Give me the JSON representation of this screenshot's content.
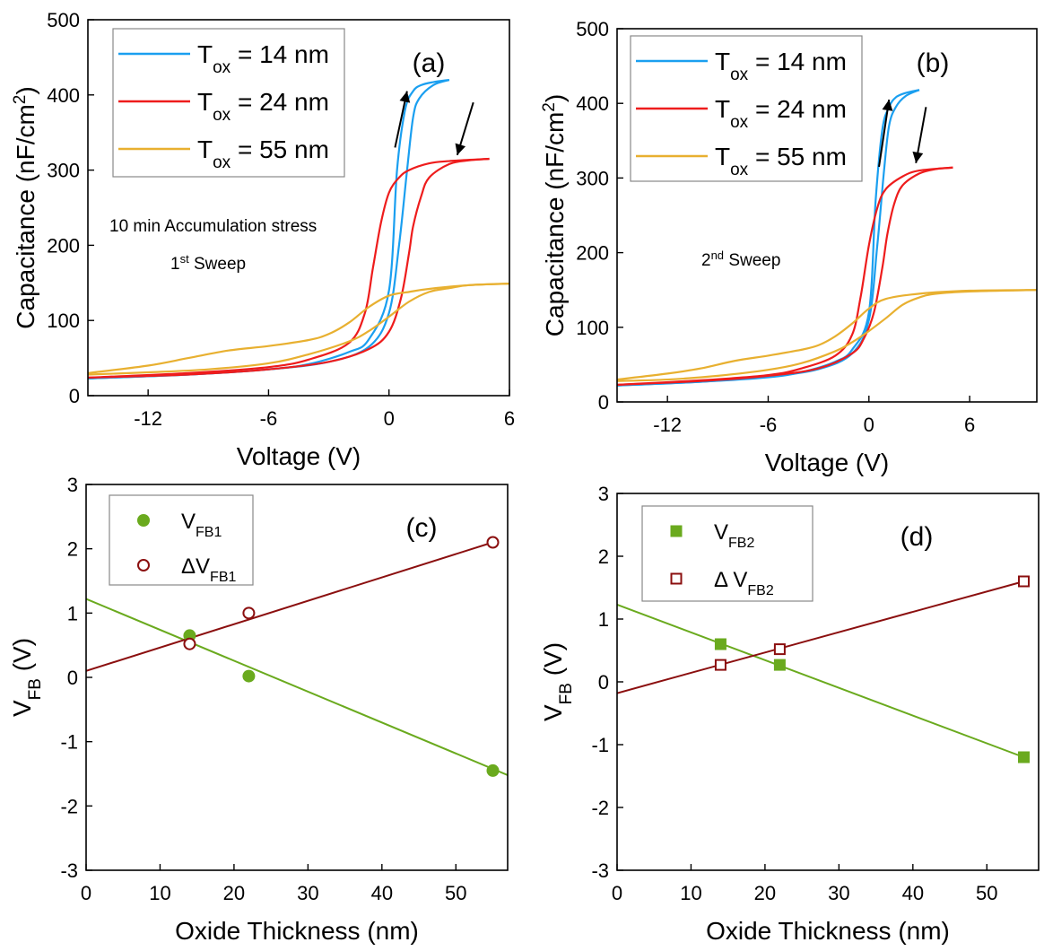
{
  "colors": {
    "t14": "#1a9ff0",
    "t24": "#ee1c1c",
    "t55": "#e8b030",
    "green": "#6aaa1e",
    "darkred": "#8b0f0f"
  },
  "chart_data": [
    {
      "id": "a",
      "type": "line",
      "panel_label": "(a)",
      "xlabel": "Voltage (V)",
      "ylabel_main": "Capacitance (nF/cm",
      "ylabel_sup": "2",
      "ylabel_end": ")",
      "xlim": [
        -15,
        6
      ],
      "ylim": [
        0,
        500
      ],
      "xticks": [
        -12,
        -6,
        0,
        6
      ],
      "yticks": [
        0,
        100,
        200,
        300,
        400,
        500
      ],
      "annotation_lines": [
        {
          "text": "10 min Accumulation stress"
        },
        {
          "prefix": "1",
          "sup": "st",
          "suffix": " Sweep"
        }
      ],
      "legend": [
        {
          "main": "T",
          "sub": "ox",
          "rest": " = 14 nm",
          "color_key": "t14"
        },
        {
          "main": "T",
          "sub": "ox",
          "rest": " = 24 nm",
          "color_key": "t24"
        },
        {
          "main": "T",
          "sub": "ox",
          "rest": " = 55 nm",
          "color_key": "t55"
        }
      ],
      "series": [
        {
          "name": "Tox = 14 nm, forward",
          "color_key": "t14",
          "x": [
            -15,
            -10,
            -6,
            -4,
            -2,
            -1,
            0,
            0.4,
            0.8,
            1.2,
            1.6,
            2.2,
            3
          ],
          "y": [
            23,
            28,
            35,
            42,
            58,
            75,
            140,
            300,
            380,
            405,
            413,
            417,
            420
          ]
        },
        {
          "name": "Tox = 14 nm, reverse",
          "color_key": "t14",
          "x": [
            3,
            2.2,
            1.5,
            1.2,
            0.9,
            0.5,
            0,
            -1,
            -3,
            -6,
            -10,
            -15
          ],
          "y": [
            420,
            413,
            395,
            370,
            300,
            200,
            110,
            65,
            45,
            35,
            28,
            23
          ]
        },
        {
          "name": "Tox = 24 nm, forward",
          "color_key": "t24",
          "x": [
            -15,
            -10,
            -6,
            -4,
            -2,
            -1.2,
            -0.8,
            -0.4,
            0,
            0.5,
            1,
            2,
            3,
            5
          ],
          "y": [
            24,
            30,
            38,
            48,
            70,
            110,
            170,
            230,
            270,
            290,
            300,
            309,
            312,
            315
          ]
        },
        {
          "name": "Tox = 24 nm, reverse",
          "color_key": "t24",
          "x": [
            5,
            4,
            3,
            2,
            1.6,
            1.2,
            1,
            0.6,
            0,
            -1,
            -3,
            -6,
            -10,
            -15
          ],
          "y": [
            315,
            313,
            308,
            290,
            265,
            225,
            190,
            130,
            85,
            62,
            45,
            35,
            28,
            24
          ]
        },
        {
          "name": "Tox = 55 nm, forward",
          "color_key": "t55",
          "x": [
            -15,
            -12,
            -10,
            -8,
            -6,
            -4,
            -3,
            -2,
            -1,
            0,
            1,
            2,
            4,
            6
          ],
          "y": [
            30,
            40,
            50,
            60,
            66,
            74,
            82,
            97,
            118,
            133,
            138,
            142,
            147,
            149
          ]
        },
        {
          "name": "Tox = 55 nm, reverse",
          "color_key": "t55",
          "x": [
            6,
            4,
            3,
            2,
            1,
            0,
            -1,
            -2,
            -4,
            -6,
            -9,
            -12,
            -15
          ],
          "y": [
            149,
            147,
            143,
            138,
            125,
            105,
            86,
            72,
            55,
            43,
            35,
            31,
            28
          ]
        }
      ],
      "arrows": [
        {
          "from": [
            0.3,
            330
          ],
          "to": [
            0.9,
            405
          ]
        },
        {
          "from": [
            4.2,
            390
          ],
          "to": [
            3.4,
            320
          ]
        }
      ]
    },
    {
      "id": "b",
      "type": "line",
      "panel_label": "(b)",
      "xlabel": "Voltage (V)",
      "ylabel_main": "Capacitance (nF/cm",
      "ylabel_sup": "2",
      "ylabel_end": ")",
      "xlim": [
        -15,
        10
      ],
      "ylim": [
        0,
        500
      ],
      "xticks": [
        -12,
        -6,
        0,
        6
      ],
      "yticks": [
        0,
        100,
        200,
        300,
        400,
        500
      ],
      "annotation_lines": [
        {
          "prefix": "2",
          "sup": "nd",
          "suffix": " Sweep"
        }
      ],
      "legend": [
        {
          "main": "T",
          "sub": "ox",
          "rest": " = 14 nm",
          "color_key": "t14"
        },
        {
          "main": "T",
          "sub": "ox",
          "rest": " = 24 nm",
          "color_key": "t24"
        },
        {
          "main": "T",
          "sub": "ox",
          "rest": " = 55 nm",
          "color_key": "t55"
        }
      ],
      "series": [
        {
          "name": "Tox = 14 nm, forward",
          "color_key": "t14",
          "x": [
            -15,
            -10,
            -6,
            -4,
            -2,
            -1,
            0,
            0.4,
            0.8,
            1.2,
            1.6,
            2.2,
            3
          ],
          "y": [
            22,
            27,
            33,
            40,
            54,
            70,
            120,
            270,
            365,
            395,
            408,
            414,
            418
          ]
        },
        {
          "name": "Tox = 14 nm, reverse",
          "color_key": "t14",
          "x": [
            3,
            2.2,
            1.6,
            1.2,
            0.9,
            0.5,
            0,
            -1,
            -3,
            -6,
            -10,
            -15
          ],
          "y": [
            418,
            410,
            395,
            370,
            310,
            210,
            110,
            65,
            44,
            34,
            27,
            22
          ]
        },
        {
          "name": "Tox = 24 nm, forward",
          "color_key": "t24",
          "x": [
            -15,
            -10,
            -6,
            -4,
            -2,
            -1,
            -0.5,
            0,
            0.5,
            1,
            2,
            3,
            5
          ],
          "y": [
            23,
            29,
            36,
            45,
            62,
            90,
            140,
            210,
            260,
            285,
            302,
            310,
            314
          ]
        },
        {
          "name": "Tox = 24 nm, reverse",
          "color_key": "t24",
          "x": [
            5,
            4,
            3,
            2,
            1.5,
            1.1,
            0.8,
            0.3,
            -0.3,
            -1,
            -3,
            -6,
            -10,
            -15
          ],
          "y": [
            314,
            312,
            306,
            290,
            265,
            225,
            180,
            120,
            85,
            65,
            45,
            35,
            28,
            23
          ]
        },
        {
          "name": "Tox = 55 nm, forward",
          "color_key": "t55",
          "x": [
            -15,
            -12,
            -10,
            -8,
            -6,
            -4,
            -3,
            -2,
            -1,
            0,
            1,
            3,
            6,
            10
          ],
          "y": [
            30,
            38,
            45,
            55,
            62,
            70,
            76,
            88,
            105,
            125,
            138,
            145,
            149,
            150
          ]
        },
        {
          "name": "Tox = 55 nm, reverse",
          "color_key": "t55",
          "x": [
            10,
            6,
            4,
            3,
            2,
            1,
            0,
            -1,
            -2,
            -4,
            -6,
            -9,
            -12,
            -15
          ],
          "y": [
            150,
            148,
            145,
            140,
            130,
            112,
            95,
            80,
            68,
            52,
            43,
            35,
            30,
            28
          ]
        }
      ],
      "arrows": [
        {
          "from": [
            0.6,
            315
          ],
          "to": [
            1.2,
            405
          ]
        },
        {
          "from": [
            3.4,
            395
          ],
          "to": [
            2.8,
            320
          ]
        }
      ]
    },
    {
      "id": "c",
      "type": "scatter",
      "panel_label": "(c)",
      "xlabel": "Oxide Thickness (nm)",
      "ylabel_main": "V",
      "ylabel_sub": "FB",
      "ylabel_end": " (V)",
      "xlim": [
        0,
        57
      ],
      "ylim": [
        -3,
        3
      ],
      "xticks": [
        0,
        10,
        20,
        30,
        40,
        50
      ],
      "yticks": [
        -3,
        -2,
        -1,
        0,
        1,
        2,
        3
      ],
      "legend": [
        {
          "prefix": "",
          "main": "V",
          "sub": "FB1",
          "marker": "circle-filled",
          "color_key": "green"
        },
        {
          "prefix": "Δ",
          "main": "V",
          "sub": "FB1",
          "marker": "circle-open",
          "color_key": "darkred"
        }
      ],
      "series": [
        {
          "name": "VFB1",
          "marker": "circle-filled",
          "color_key": "green",
          "x": [
            14,
            22,
            55
          ],
          "y": [
            0.65,
            0.02,
            -1.45
          ],
          "fit": {
            "x": [
              0,
              57
            ],
            "y": [
              1.22,
              -1.52
            ]
          }
        },
        {
          "name": "ΔVFB1",
          "marker": "circle-open",
          "color_key": "darkred",
          "x": [
            14,
            22,
            55
          ],
          "y": [
            0.52,
            1.0,
            2.1
          ],
          "fit": {
            "x": [
              0,
              55
            ],
            "y": [
              0.1,
              2.1
            ]
          }
        }
      ]
    },
    {
      "id": "d",
      "type": "scatter",
      "panel_label": "(d)",
      "xlabel": "Oxide Thickness (nm)",
      "ylabel_main": "V",
      "ylabel_sub": "FB",
      "ylabel_end": " (V)",
      "xlim": [
        0,
        57
      ],
      "ylim": [
        -3,
        3
      ],
      "xticks": [
        0,
        10,
        20,
        30,
        40,
        50
      ],
      "yticks": [
        -3,
        -2,
        -1,
        0,
        1,
        2,
        3
      ],
      "legend": [
        {
          "prefix": "",
          "main": "V",
          "sub": "FB2",
          "marker": "square-filled",
          "color_key": "green"
        },
        {
          "prefix": "Δ ",
          "main": "V",
          "sub": "FB2",
          "marker": "square-open",
          "color_key": "darkred"
        }
      ],
      "series": [
        {
          "name": "VFB2",
          "marker": "square-filled",
          "color_key": "green",
          "x": [
            14,
            22,
            55
          ],
          "y": [
            0.6,
            0.27,
            -1.2
          ],
          "fit": {
            "x": [
              0,
              55
            ],
            "y": [
              1.23,
              -1.2
            ]
          }
        },
        {
          "name": "ΔVFB2",
          "marker": "square-open",
          "color_key": "darkred",
          "x": [
            14,
            22,
            55
          ],
          "y": [
            0.27,
            0.52,
            1.6
          ],
          "fit": {
            "x": [
              0,
              55
            ],
            "y": [
              -0.18,
              1.6
            ]
          }
        }
      ]
    }
  ]
}
